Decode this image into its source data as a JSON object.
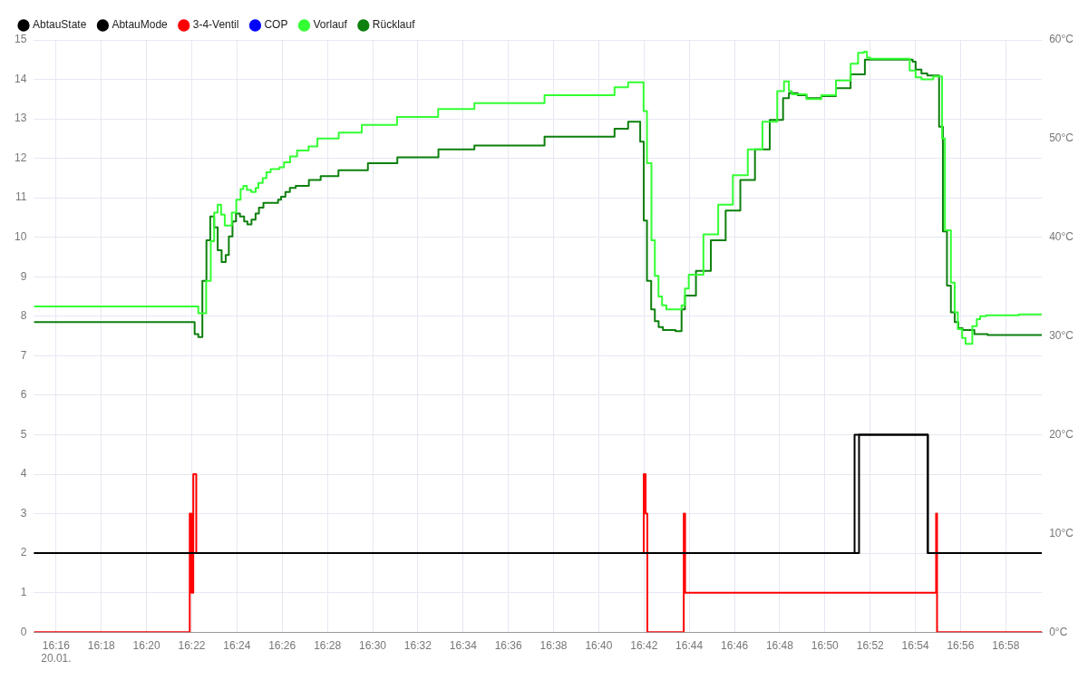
{
  "chart_data": {
    "type": "step",
    "legend": "top left",
    "grid": true,
    "marker": "none",
    "xlim": [
      16.2503,
      16.9933
    ],
    "xticks": [
      {
        "value": 16.2667,
        "label": "16:16\n20.01."
      },
      {
        "value": 16.3,
        "label": "16:18"
      },
      {
        "value": 16.3333,
        "label": "16:20"
      },
      {
        "value": 16.3667,
        "label": "16:22"
      },
      {
        "value": 16.4,
        "label": "16:24"
      },
      {
        "value": 16.4333,
        "label": "16:26"
      },
      {
        "value": 16.4667,
        "label": "16:28"
      },
      {
        "value": 16.5,
        "label": "16:30"
      },
      {
        "value": 16.5333,
        "label": "16:32"
      },
      {
        "value": 16.5667,
        "label": "16:34"
      },
      {
        "value": 16.6,
        "label": "16:36"
      },
      {
        "value": 16.6333,
        "label": "16:38"
      },
      {
        "value": 16.6667,
        "label": "16:40"
      },
      {
        "value": 16.7,
        "label": "16:42"
      },
      {
        "value": 16.7333,
        "label": "16:44"
      },
      {
        "value": 16.7667,
        "label": "16:46"
      },
      {
        "value": 16.8,
        "label": "16:48"
      },
      {
        "value": 16.8333,
        "label": "16:50"
      },
      {
        "value": 16.8667,
        "label": "16:52"
      },
      {
        "value": 16.9,
        "label": "16:54"
      },
      {
        "value": 16.9333,
        "label": "16:56"
      },
      {
        "value": 16.9667,
        "label": "16:58"
      }
    ],
    "ylim": [
      0,
      15
    ],
    "yticks": [
      0,
      1,
      2,
      3,
      4,
      5,
      6,
      7,
      8,
      9,
      10,
      11,
      12,
      13,
      14,
      15
    ],
    "y2lim": [
      0,
      60
    ],
    "y2ticks": [
      {
        "value": 0,
        "label": "0°C"
      },
      {
        "value": 10,
        "label": "10°C"
      },
      {
        "value": 20,
        "label": "20°C"
      },
      {
        "value": 30,
        "label": "30°C"
      },
      {
        "value": 40,
        "label": "40°C"
      },
      {
        "value": 50,
        "label": "50°C"
      },
      {
        "value": 60,
        "label": "60°C"
      }
    ],
    "series": [
      {
        "name": "AbtauState",
        "color": "#000000",
        "x": [
          16.2503,
          16.8552,
          16.9092,
          16.9933
        ],
        "values": [
          2,
          5,
          2,
          2
        ]
      },
      {
        "name": "AbtauMode",
        "color": "#000000",
        "x": [
          16.2503,
          16.8585,
          16.9092,
          16.9933
        ],
        "values": [
          2,
          5,
          2,
          2
        ]
      },
      {
        "name": "3-4-Ventil",
        "color": "#ff0000",
        "x": [
          16.2503,
          16.3652,
          16.3665,
          16.3678,
          16.37,
          16.6998,
          16.7012,
          16.7025,
          16.7293,
          16.7303,
          16.9153,
          16.916,
          16.9933
        ],
        "values": [
          0,
          3,
          1,
          4,
          2,
          4,
          3,
          0,
          3,
          1,
          3,
          0,
          0
        ]
      },
      {
        "name": "COP",
        "color": "#0000ff"
      },
      {
        "name": "Vorlauf",
        "color": "#33ff33",
        "axis": "y2",
        "x": [
          16.2503,
          16.3715,
          16.3773,
          16.3807,
          16.3832,
          16.3858,
          16.3883,
          16.391,
          16.3962,
          16.3995,
          16.4027,
          16.4047,
          16.4073,
          16.4105,
          16.4138,
          16.4158,
          16.419,
          16.4217,
          16.4248,
          16.4313,
          16.4347,
          16.4392,
          16.4443,
          16.4528,
          16.4593,
          16.475,
          16.492,
          16.518,
          16.5483,
          16.575,
          16.6267,
          16.6783,
          16.6883,
          16.6997,
          16.7022,
          16.7055,
          16.708,
          16.7107,
          16.7133,
          16.7165,
          16.7277,
          16.7302,
          16.733,
          16.7438,
          16.7547,
          16.7655,
          16.7765,
          16.7873,
          16.7982,
          16.8032,
          16.8068,
          16.809,
          16.8198,
          16.8307,
          16.8415,
          16.8523,
          16.8578,
          16.8622,
          16.8643,
          16.8667,
          16.8958,
          16.9002,
          16.9045,
          16.9132,
          16.9197,
          16.9218,
          16.9262,
          16.929,
          16.9313,
          16.9345,
          16.937,
          16.942,
          16.9453,
          16.9478,
          16.9522,
          16.9762,
          16.9933
        ],
        "values": [
          33.0,
          32.3,
          35.6,
          39.6,
          42.5,
          43.3,
          42.3,
          41.2,
          42.5,
          43.8,
          44.9,
          45.2,
          44.8,
          44.6,
          45.0,
          45.5,
          46.0,
          46.6,
          46.9,
          47.1,
          47.6,
          48.2,
          48.8,
          49.2,
          50.0,
          50.6,
          51.4,
          52.2,
          53.0,
          53.6,
          54.4,
          55.2,
          55.7,
          52.8,
          47.5,
          39.7,
          36.1,
          34.0,
          33.1,
          32.7,
          33.1,
          34.8,
          36.2,
          40.3,
          43.3,
          46.3,
          48.9,
          51.7,
          54.8,
          55.8,
          54.8,
          54.5,
          54.0,
          54.4,
          55.9,
          57.6,
          58.7,
          58.8,
          58.2,
          58.1,
          56.9,
          56.2,
          56.0,
          56.3,
          50.0,
          40.7,
          35.4,
          32.4,
          30.7,
          29.8,
          29.2,
          31.0,
          31.7,
          32.0,
          32.1,
          32.2,
          32.2
        ]
      },
      {
        "name": "Rücklauf",
        "color": "#0d800d",
        "axis": "y2",
        "x": [
          16.2503,
          16.3688,
          16.3715,
          16.3745,
          16.3775,
          16.3803,
          16.3832,
          16.3858,
          16.3887,
          16.3917,
          16.394,
          16.3967,
          16.3993,
          16.4022,
          16.4053,
          16.4077,
          16.4107,
          16.4137,
          16.4162,
          16.4195,
          16.4303,
          16.4325,
          16.4357,
          16.439,
          16.4433,
          16.453,
          16.4617,
          16.4748,
          16.4965,
          16.5182,
          16.5485,
          16.575,
          16.6267,
          16.6783,
          16.6883,
          16.6972,
          16.6998,
          16.7022,
          16.7053,
          16.708,
          16.7108,
          16.714,
          16.7232,
          16.7277,
          16.7302,
          16.733,
          16.7383,
          16.7493,
          16.7602,
          16.771,
          16.7818,
          16.7927,
          16.8025,
          16.8068,
          16.8133,
          16.8198,
          16.8307,
          16.8415,
          16.8523,
          16.8628,
          16.898,
          16.9002,
          16.9045,
          16.9088,
          16.9132,
          16.9175,
          16.9203,
          16.9233,
          16.9262,
          16.929,
          16.9317,
          16.9348,
          16.9435,
          16.9533,
          16.9933
        ],
        "values": [
          31.4,
          30.2,
          29.9,
          35.6,
          39.7,
          42.1,
          41.0,
          38.7,
          37.5,
          38.2,
          40.1,
          41.6,
          42.4,
          42.1,
          41.6,
          41.3,
          41.8,
          42.4,
          43.0,
          43.5,
          43.8,
          44.1,
          44.6,
          45.0,
          45.2,
          45.8,
          46.2,
          46.8,
          47.5,
          48.1,
          48.9,
          49.3,
          50.2,
          51.0,
          51.7,
          49.7,
          41.7,
          35.6,
          32.7,
          31.5,
          30.9,
          30.6,
          30.5,
          32.7,
          34.1,
          34.1,
          36.6,
          39.7,
          42.7,
          45.8,
          48.9,
          51.9,
          54.1,
          54.6,
          54.4,
          54.1,
          54.3,
          55.1,
          56.5,
          58.0,
          57.8,
          57.0,
          56.6,
          56.4,
          56.4,
          51.2,
          40.6,
          35.1,
          32.4,
          31.4,
          30.8,
          30.6,
          30.2,
          30.1,
          30.1
        ]
      }
    ]
  }
}
